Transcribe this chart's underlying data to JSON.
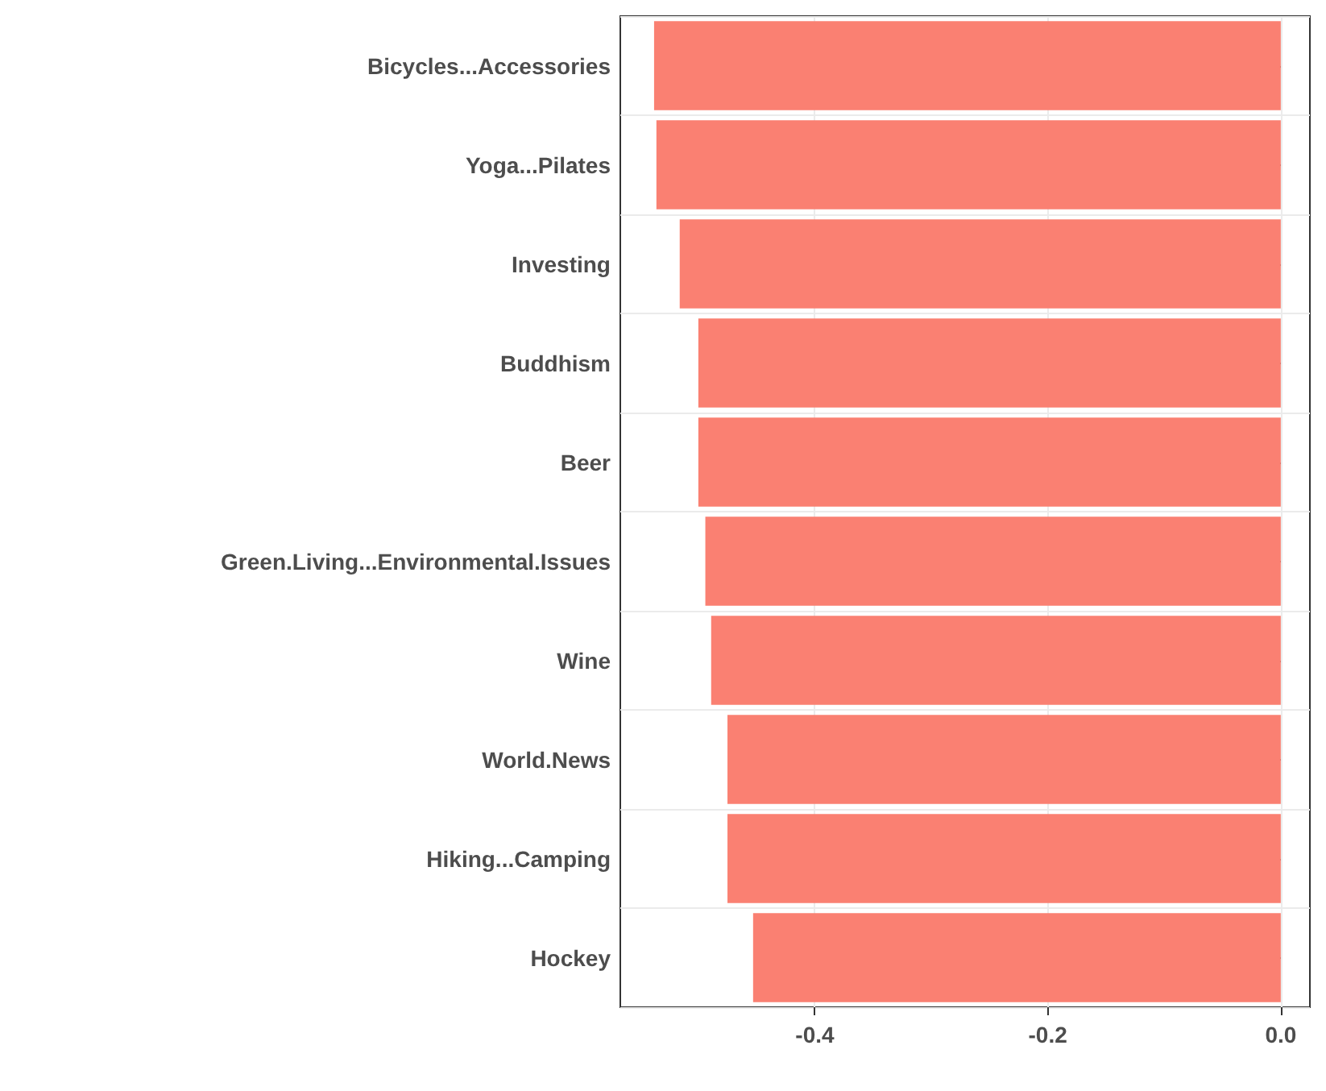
{
  "chart_data": {
    "type": "bar",
    "orientation": "horizontal",
    "categories": [
      "Bicycles...Accessories",
      "Yoga...Pilates",
      "Investing",
      "Buddhism",
      "Beer",
      "Green.Living...Environmental.Issues",
      "Wine",
      "World.News",
      "Hiking...Camping",
      "Hockey"
    ],
    "values": [
      -0.538,
      -0.536,
      -0.516,
      -0.5,
      -0.5,
      -0.494,
      -0.489,
      -0.475,
      -0.475,
      -0.453
    ],
    "color": "#fa8072",
    "xlim": [
      -0.567,
      0.025
    ],
    "xticks": [
      -0.4,
      -0.2,
      {
        "value": 0,
        "label": "0.0"
      }
    ],
    "grid": true
  }
}
